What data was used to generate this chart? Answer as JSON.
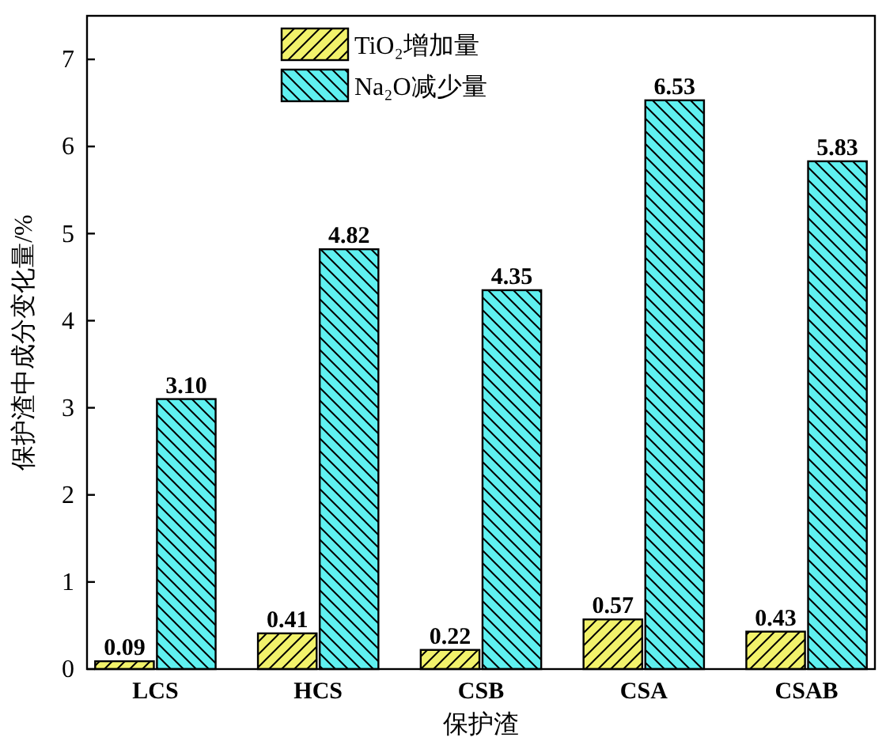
{
  "chart_data": {
    "type": "bar",
    "xlabel": "保护渣",
    "ylabel": "保护渣中成分变化量/%",
    "categories": [
      "LCS",
      "HCS",
      "CSB",
      "CSA",
      "CSAB"
    ],
    "series": [
      {
        "name": "TiO₂增加量",
        "color": "#f2f26b",
        "values": [
          0.09,
          0.41,
          0.22,
          0.57,
          0.43
        ]
      },
      {
        "name": "Na₂O减少量",
        "color": "#5ff0f0",
        "values": [
          3.1,
          4.82,
          4.35,
          6.53,
          5.83
        ]
      }
    ],
    "value_labels": [
      [
        "0.09",
        "0.41",
        "0.22",
        "0.57",
        "0.43"
      ],
      [
        "3.10",
        "4.82",
        "4.35",
        "6.53",
        "5.83"
      ]
    ],
    "ylim": [
      0,
      7.5
    ],
    "yticks": [
      0,
      1,
      2,
      3,
      4,
      5,
      6,
      7
    ],
    "grid": false,
    "legend": "top left"
  }
}
